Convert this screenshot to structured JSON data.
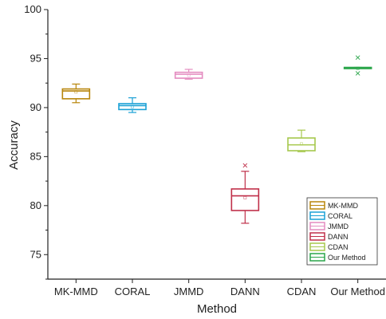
{
  "chart_data": {
    "type": "box",
    "xlabel": "Method",
    "ylabel": "Accuracy",
    "ylim": [
      72.5,
      100
    ],
    "yticks": [
      75,
      80,
      85,
      90,
      95,
      100
    ],
    "categories": [
      "MK-MMD",
      "CORAL",
      "JMMD",
      "DANN",
      "CDAN",
      "Our Method"
    ],
    "colors": [
      "#b8860b",
      "#1ba1d6",
      "#e48cc0",
      "#c0304a",
      "#a6c84c",
      "#2aa54a"
    ],
    "boxes": [
      {
        "min": 90.5,
        "q1": 90.9,
        "median": 91.7,
        "q3": 91.9,
        "max": 92.4,
        "mean": 91.6,
        "outliers": []
      },
      {
        "min": 89.5,
        "q1": 89.8,
        "median": 90.2,
        "q3": 90.4,
        "max": 91.0,
        "mean": 90.1,
        "outliers": []
      },
      {
        "min": 92.9,
        "q1": 93.0,
        "median": 93.4,
        "q3": 93.6,
        "max": 93.9,
        "mean": 93.3,
        "outliers": []
      },
      {
        "min": 78.2,
        "q1": 79.5,
        "median": 81.0,
        "q3": 81.7,
        "max": 83.5,
        "mean": 80.8,
        "outliers": [
          84.1
        ]
      },
      {
        "min": 85.5,
        "q1": 85.6,
        "median": 86.2,
        "q3": 86.9,
        "max": 87.7,
        "mean": 86.3,
        "outliers": []
      },
      {
        "min": 94.0,
        "q1": 94.0,
        "median": 94.0,
        "q3": 94.1,
        "max": 94.1,
        "mean": 94.0,
        "outliers": [
          95.1,
          93.5
        ]
      }
    ],
    "legend": {
      "placement": "bottom-right",
      "entries": [
        "MK-MMD",
        "CORAL",
        "JMMD",
        "DANN",
        "CDAN",
        "Our Method"
      ]
    }
  }
}
